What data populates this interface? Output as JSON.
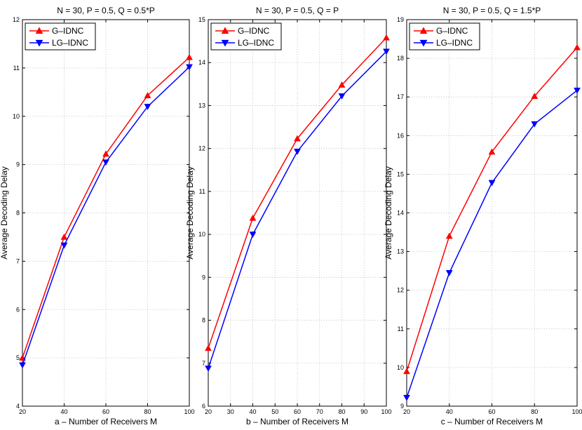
{
  "chart_data": [
    {
      "type": "line",
      "title": "N = 30, P = 0.5, Q = 0.5*P",
      "xlabel": "a – Number of Receivers M",
      "ylabel": "Average Decoding Delay",
      "x": [
        20,
        40,
        60,
        80,
        100
      ],
      "xticks": [
        20,
        40,
        60,
        80,
        100
      ],
      "yticks": [
        4,
        5,
        6,
        7,
        8,
        9,
        10,
        11,
        12
      ],
      "xlim": [
        20,
        100
      ],
      "ylim": [
        4,
        12
      ],
      "grid": true,
      "legend_position": "top-left",
      "series": [
        {
          "name": "G–IDNC",
          "values": [
            5.0,
            7.5,
            9.22,
            10.43,
            11.22
          ],
          "color": "#ff0000",
          "marker": "triangle-up"
        },
        {
          "name": "LG–IDNC",
          "values": [
            4.85,
            7.33,
            9.05,
            10.2,
            11.02
          ],
          "color": "#0000ff",
          "marker": "triangle-down"
        }
      ]
    },
    {
      "type": "line",
      "title": "N = 30, P = 0.5, Q = P",
      "xlabel": "b – Number of Receivers M",
      "ylabel": "Average Decoding Delay",
      "x": [
        20,
        40,
        60,
        80,
        100
      ],
      "xticks": [
        20,
        30,
        40,
        50,
        60,
        70,
        80,
        90,
        100
      ],
      "yticks": [
        6,
        7,
        8,
        9,
        10,
        11,
        12,
        13,
        14,
        15
      ],
      "xlim": [
        20,
        100
      ],
      "ylim": [
        6,
        15
      ],
      "grid": true,
      "legend_position": "top-left",
      "series": [
        {
          "name": "G–IDNC",
          "values": [
            7.35,
            10.38,
            12.23,
            13.48,
            14.58
          ],
          "color": "#ff0000",
          "marker": "triangle-up"
        },
        {
          "name": "LG–IDNC",
          "values": [
            6.88,
            10.0,
            11.93,
            13.22,
            14.26
          ],
          "color": "#0000ff",
          "marker": "triangle-down"
        }
      ]
    },
    {
      "type": "line",
      "title": "N = 30, P = 0.5, Q = 1.5*P",
      "xlabel": "c – Number of Receivers M",
      "ylabel": "Average Decoding Delay",
      "x": [
        20,
        40,
        60,
        80,
        100
      ],
      "xticks": [
        20,
        40,
        60,
        80,
        100
      ],
      "yticks": [
        9,
        10,
        11,
        12,
        13,
        14,
        15,
        16,
        17,
        18,
        19
      ],
      "xlim": [
        20,
        100
      ],
      "ylim": [
        9,
        19
      ],
      "grid": true,
      "legend_position": "top-left",
      "series": [
        {
          "name": "G–IDNC",
          "values": [
            9.9,
            13.4,
            15.58,
            17.02,
            18.28
          ],
          "color": "#ff0000",
          "marker": "triangle-up"
        },
        {
          "name": "LG–IDNC",
          "values": [
            9.22,
            12.45,
            14.78,
            16.3,
            17.17
          ],
          "color": "#0000ff",
          "marker": "triangle-down"
        }
      ]
    }
  ]
}
